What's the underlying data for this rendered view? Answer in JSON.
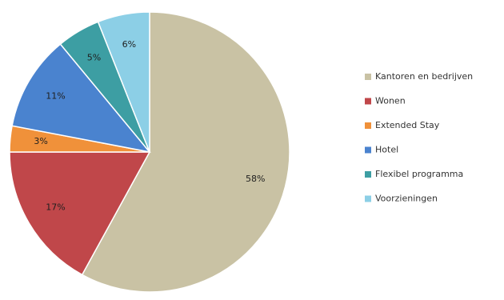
{
  "chart_data": {
    "type": "pie",
    "title": "",
    "legend_position": "right",
    "slices": [
      {
        "name": "Kantoren en bedrijven",
        "value": 58,
        "label": "58%",
        "color": "#c9c2a4"
      },
      {
        "name": "Wonen",
        "value": 17,
        "label": "17%",
        "color": "#c0474a"
      },
      {
        "name": "Extended Stay",
        "value": 3,
        "label": "3%",
        "color": "#f0913a"
      },
      {
        "name": "Hotel",
        "value": 11,
        "label": "11%",
        "color": "#4a83cf"
      },
      {
        "name": "Flexibel programma",
        "value": 5,
        "label": "5%",
        "color": "#3d9ea3"
      },
      {
        "name": "Voorzieningen",
        "value": 6,
        "label": "6%",
        "color": "#8ccfe6"
      }
    ]
  }
}
